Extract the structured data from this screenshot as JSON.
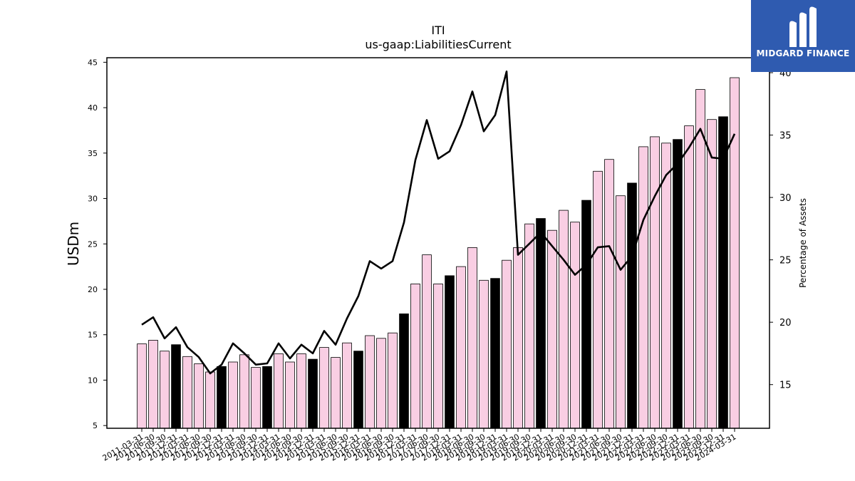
{
  "header": {
    "ticker": "ITI",
    "metric": "us-gaap:LiabilitiesCurrent"
  },
  "logo": {
    "text": "MIDGARD FINANCE"
  },
  "colors": {
    "bar_fill": "#f9cee3",
    "bar_highlight": "#000000",
    "line": "#000000",
    "logo_bg": "#2f5bb0"
  },
  "chart_data": {
    "type": "bar",
    "ylabel_left": "USDm",
    "ylabel_right": "Percentage of Assets",
    "ylim_left": [
      4.7,
      45.5
    ],
    "yticks_left": [
      5,
      10,
      15,
      20,
      25,
      30,
      35,
      40,
      45
    ],
    "ylim_right": [
      11.5,
      41.2
    ],
    "yticks_right": [
      15,
      20,
      25,
      30,
      35,
      40
    ],
    "categories": [
      "2011-03-31",
      "2011-06-30",
      "2011-09-30",
      "2011-12-31",
      "2012-03-31",
      "2012-06-30",
      "2012-09-30",
      "2012-12-31",
      "2013-03-31",
      "2013-06-30",
      "2013-09-30",
      "2013-12-31",
      "2014-03-31",
      "2014-06-30",
      "2014-09-30",
      "2014-12-31",
      "2015-03-31",
      "2015-06-30",
      "2015-09-30",
      "2015-12-31",
      "2016-03-31",
      "2016-06-30",
      "2016-09-30",
      "2016-12-31",
      "2017-03-31",
      "2017-06-30",
      "2017-09-30",
      "2017-12-31",
      "2018-03-31",
      "2018-06-30",
      "2018-09-30",
      "2018-12-31",
      "2019-03-31",
      "2019-06-30",
      "2019-09-30",
      "2019-12-31",
      "2020-03-31",
      "2020-06-30",
      "2020-09-30",
      "2020-12-31",
      "2021-03-31",
      "2021-06-30",
      "2021-09-30",
      "2021-12-31",
      "2022-03-31",
      "2022-06-30",
      "2022-09-30",
      "2022-12-31",
      "2023-03-31",
      "2023-06-30",
      "2023-09-30",
      "2023-12-31",
      "2024-03-31"
    ],
    "highlight": [
      false,
      false,
      false,
      true,
      false,
      false,
      false,
      true,
      false,
      false,
      false,
      true,
      false,
      false,
      false,
      true,
      false,
      false,
      false,
      true,
      false,
      false,
      false,
      true,
      false,
      false,
      false,
      true,
      false,
      false,
      false,
      true,
      false,
      false,
      false,
      true,
      false,
      false,
      false,
      true,
      false,
      false,
      false,
      true,
      false,
      false,
      false,
      true,
      false,
      false,
      false,
      true,
      false
    ],
    "series": [
      {
        "values": [
          14.0,
          14.4,
          13.2,
          13.9,
          12.6,
          11.8,
          10.9,
          11.5,
          12.0,
          12.8,
          11.4,
          11.5,
          12.9,
          12.0,
          12.9,
          12.3,
          13.6,
          12.5,
          14.1,
          13.2,
          14.9,
          14.6,
          15.2,
          17.3,
          20.6,
          23.8,
          20.6,
          21.5,
          22.5,
          24.6,
          21.0,
          21.2,
          23.2,
          24.6,
          27.2,
          27.8,
          26.5,
          28.7,
          27.4,
          29.8,
          33.0,
          34.3,
          30.3,
          31.7,
          35.7,
          36.8,
          36.1,
          36.5,
          38.0,
          42.0,
          38.7,
          39.0,
          43.3
        ]
      },
      {
        "axis": "right",
        "type": "line",
        "values": [
          19.8,
          20.4,
          18.7,
          19.6,
          18.0,
          17.2,
          15.9,
          16.6,
          18.3,
          17.5,
          16.6,
          16.7,
          18.3,
          17.1,
          18.2,
          17.5,
          19.3,
          18.2,
          20.3,
          22.1,
          24.9,
          24.3,
          24.9,
          28.0,
          33.0,
          36.2,
          33.1,
          33.7,
          35.8,
          38.5,
          35.3,
          36.6,
          40.1,
          25.4,
          26.3,
          27.2,
          26.1,
          25.0,
          23.8,
          24.6,
          26.0,
          26.1,
          24.2,
          25.3,
          28.2,
          30.1,
          31.8,
          32.7,
          34.0,
          35.5,
          33.2,
          33.1,
          35.1
        ]
      }
    ]
  }
}
